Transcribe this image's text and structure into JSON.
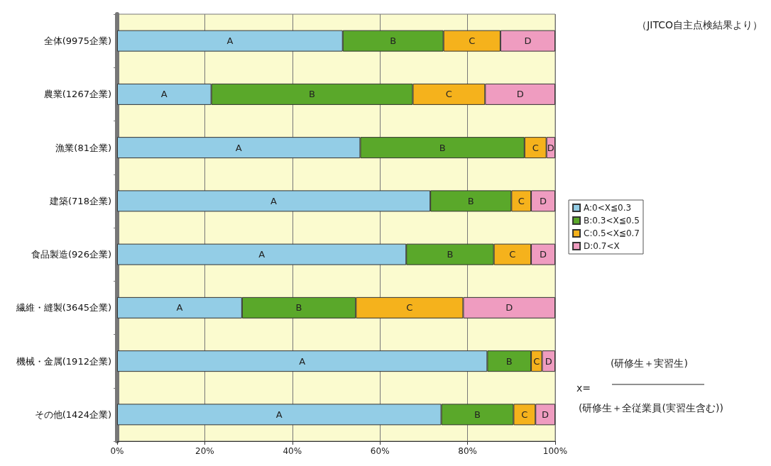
{
  "chart_data": {
    "type": "bar",
    "orientation": "horizontal",
    "stacked": true,
    "categories": [
      "全体(9975企業)",
      "農業(1267企業)",
      "漁業(81企業)",
      "建築(718企業)",
      "食品製造(926企業)",
      "繊維・縫製(3645企業)",
      "機械・金属(1912企業)",
      "その他(1424企業)"
    ],
    "series": [
      {
        "name": "A:0<X≦0.3",
        "color": "#93cde6",
        "values": [
          51.5,
          21.5,
          55.5,
          71.5,
          66,
          28.5,
          84.5,
          74
        ],
        "value_labels": [
          "A",
          "A",
          "A",
          "A",
          "A",
          "A",
          "A",
          "A"
        ]
      },
      {
        "name": "B:0.3<X≦0.5",
        "color": "#5aa82a",
        "values": [
          23,
          46,
          37.5,
          18.5,
          20,
          26,
          10,
          16.5
        ],
        "value_labels": [
          "B",
          "B",
          "B",
          "B",
          "B",
          "B",
          "B",
          "B"
        ]
      },
      {
        "name": "C:0.5<X≦0.7",
        "color": "#f5b21c",
        "values": [
          13,
          16.5,
          5,
          4.5,
          8.5,
          24.5,
          2.5,
          5
        ],
        "value_labels": [
          "C",
          "C",
          "C",
          "C",
          "C",
          "C",
          "C",
          "C"
        ]
      },
      {
        "name": "D:0.7<X",
        "color": "#ef9cc0",
        "values": [
          12.5,
          16,
          2,
          5.5,
          5.5,
          21,
          3,
          4.5
        ],
        "value_labels": [
          "D",
          "D",
          "D",
          "D",
          "D",
          "D",
          "D",
          "D"
        ]
      }
    ],
    "xlim": [
      0,
      100
    ],
    "xticks": [
      {
        "value": 0,
        "label": "0%"
      },
      {
        "value": 20,
        "label": "20%"
      },
      {
        "value": 40,
        "label": "40%"
      },
      {
        "value": 60,
        "label": "60%"
      },
      {
        "value": 80,
        "label": "80%"
      },
      {
        "value": 100,
        "label": "100%"
      }
    ],
    "grid": "x",
    "legend": "right",
    "annotations": [
      "（JITCO自主点検結果より）",
      "x=",
      "(研修生＋実習生)",
      "(研修生＋全従業員(実習生含む))"
    ]
  }
}
